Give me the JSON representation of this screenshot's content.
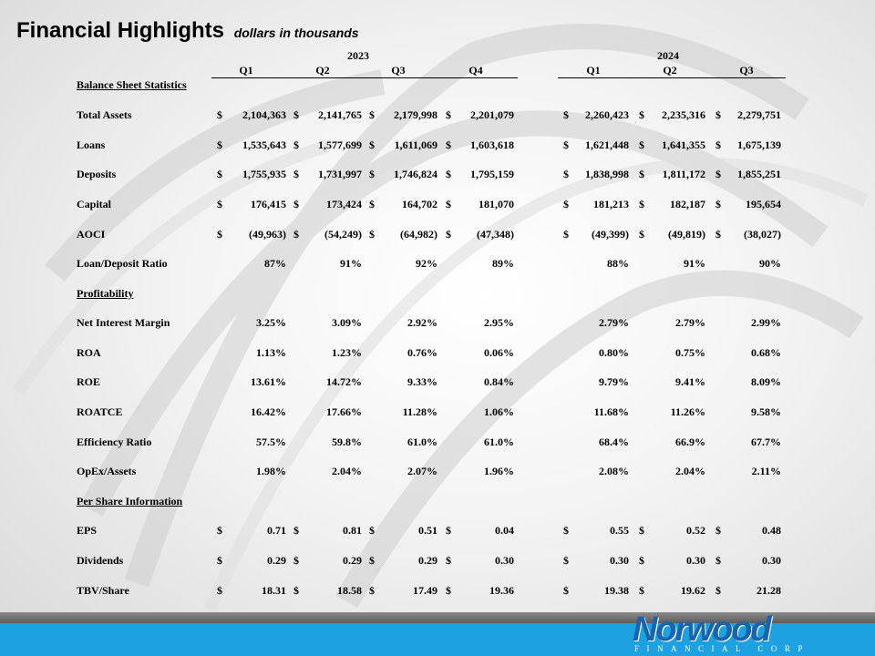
{
  "title": "Financial Highlights",
  "subtitle": "dollars in thousands",
  "years": [
    "2023",
    "2024"
  ],
  "quarters": [
    "Q1",
    "Q2",
    "Q3",
    "Q4",
    "Q1",
    "Q2",
    "Q3"
  ],
  "sections": {
    "balance": "Balance Sheet Statistics",
    "profit": "Profitability",
    "pershare": "Per Share Information"
  },
  "rows": [
    {
      "label": "Total Assets",
      "cur": true,
      "values": [
        "2,104,363",
        "2,141,765",
        "2,179,998",
        "2,201,079",
        "2,260,423",
        "2,235,316",
        "2,279,751"
      ]
    },
    {
      "label": "Loans",
      "cur": true,
      "values": [
        "1,535,643",
        "1,577,699",
        "1,611,069",
        "1,603,618",
        "1,621,448",
        "1,641,355",
        "1,675,139"
      ]
    },
    {
      "label": "Deposits",
      "cur": true,
      "values": [
        "1,755,935",
        "1,731,997",
        "1,746,824",
        "1,795,159",
        "1,838,998",
        "1,811,172",
        "1,855,251"
      ]
    },
    {
      "label": "Capital",
      "cur": true,
      "values": [
        "176,415",
        "173,424",
        "164,702",
        "181,070",
        "181,213",
        "182,187",
        "195,654"
      ]
    },
    {
      "label": "AOCI",
      "cur": true,
      "values": [
        "(49,963)",
        "(54,249)",
        "(64,982)",
        "(47,348)",
        "(49,399)",
        "(49,819)",
        "(38,027)"
      ]
    },
    {
      "label": "Loan/Deposit Ratio",
      "cur": false,
      "values": [
        "87%",
        "91%",
        "92%",
        "89%",
        "88%",
        "91%",
        "90%"
      ]
    },
    {
      "label": "Net Interest Margin",
      "cur": false,
      "values": [
        "3.25%",
        "3.09%",
        "2.92%",
        "2.95%",
        "2.79%",
        "2.79%",
        "2.99%"
      ]
    },
    {
      "label": "ROA",
      "cur": false,
      "values": [
        "1.13%",
        "1.23%",
        "0.76%",
        "0.06%",
        "0.80%",
        "0.75%",
        "0.68%"
      ]
    },
    {
      "label": "ROE",
      "cur": false,
      "values": [
        "13.61%",
        "14.72%",
        "9.33%",
        "0.84%",
        "9.79%",
        "9.41%",
        "8.09%"
      ]
    },
    {
      "label": "ROATCE",
      "cur": false,
      "values": [
        "16.42%",
        "17.66%",
        "11.28%",
        "1.06%",
        "11.68%",
        "11.26%",
        "9.58%"
      ]
    },
    {
      "label": "Efficiency Ratio",
      "cur": false,
      "values": [
        "57.5%",
        "59.8%",
        "61.0%",
        "61.0%",
        "68.4%",
        "66.9%",
        "67.7%"
      ]
    },
    {
      "label": "OpEx/Assets",
      "cur": false,
      "values": [
        "1.98%",
        "2.04%",
        "2.07%",
        "1.96%",
        "2.08%",
        "2.04%",
        "2.11%"
      ]
    },
    {
      "label": "EPS",
      "cur": true,
      "values": [
        "0.71",
        "0.81",
        "0.51",
        "0.04",
        "0.55",
        "0.52",
        "0.48"
      ]
    },
    {
      "label": "Dividends",
      "cur": true,
      "values": [
        "0.29",
        "0.29",
        "0.29",
        "0.30",
        "0.30",
        "0.30",
        "0.30"
      ]
    },
    {
      "label": "TBV/Share",
      "cur": true,
      "values": [
        "18.31",
        "18.58",
        "17.49",
        "19.36",
        "19.38",
        "19.62",
        "21.28"
      ]
    }
  ],
  "currency_symbol": "$",
  "logo": {
    "name": "Norwood",
    "tagline": "FINANCIAL CORP"
  },
  "colors": {
    "footer_blue": "#1ea1e0",
    "logo_blue": "#1a63ad"
  }
}
